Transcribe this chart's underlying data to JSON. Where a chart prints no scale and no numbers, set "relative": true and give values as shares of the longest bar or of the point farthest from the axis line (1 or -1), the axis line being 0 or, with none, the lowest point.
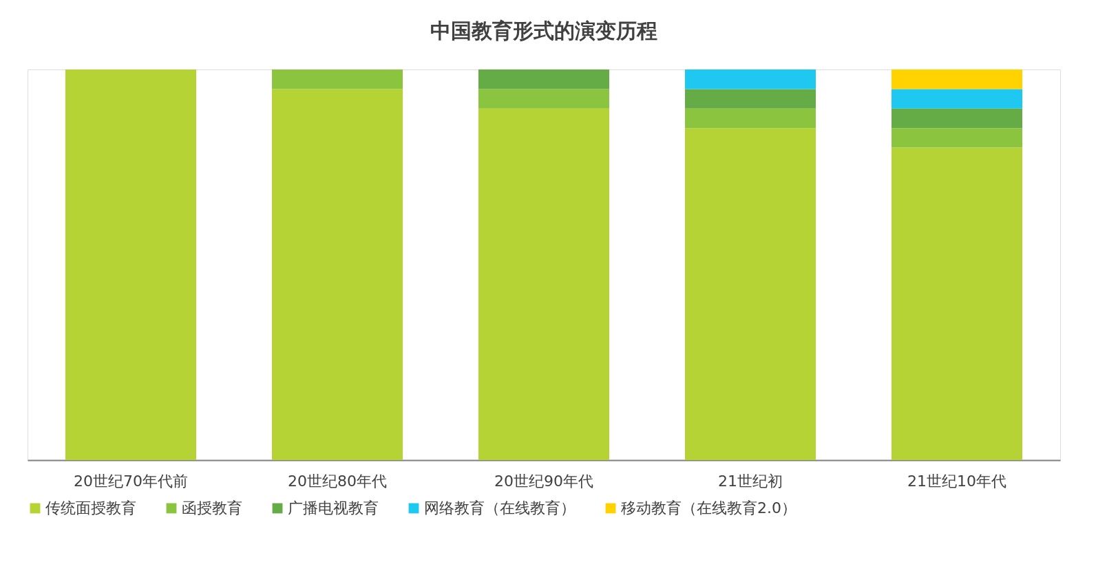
{
  "chart_data": {
    "type": "bar",
    "title": "中国教育形式的演变历程",
    "categories": [
      "20世纪70年代前",
      "20世纪80年代",
      "20世纪90年代",
      "21世纪初",
      "21世纪10年代"
    ],
    "stacked": true,
    "relative": true,
    "legend": "bottom",
    "grid": false,
    "series": [
      {
        "name": "传统面授教育",
        "color": "#b5d334",
        "values": [
          1.0,
          0.95,
          0.9,
          0.85,
          0.8
        ]
      },
      {
        "name": "函授教育",
        "color": "#8bc53f",
        "values": [
          null,
          0.05,
          0.05,
          0.05,
          0.05
        ]
      },
      {
        "name": "广播电视教育",
        "color": "#66ac46",
        "values": [
          null,
          null,
          0.05,
          0.05,
          0.05
        ]
      },
      {
        "name": "网络教育（在线教育）",
        "color": "#1fc8f0",
        "values": [
          null,
          null,
          null,
          0.05,
          0.05
        ]
      },
      {
        "name": "移动教育（在线教育2.0）",
        "color": "#ffd200",
        "values": [
          null,
          null,
          null,
          null,
          0.05
        ]
      }
    ]
  }
}
